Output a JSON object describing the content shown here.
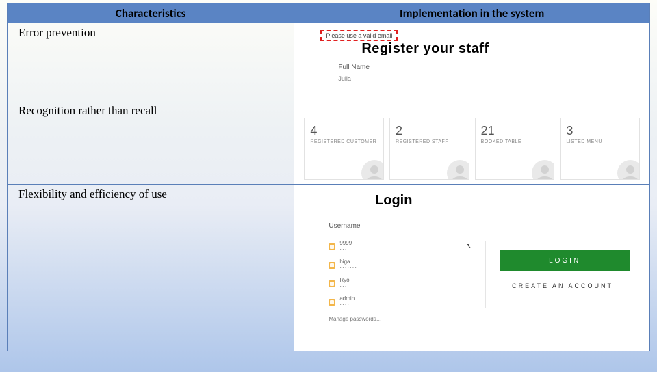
{
  "headers": {
    "left": "Characteristics",
    "right": "Implementation in the system"
  },
  "rows": {
    "r1": {
      "characteristic": "Error prevention"
    },
    "r2": {
      "characteristic": "Recognition rather than recall"
    },
    "r3": {
      "characteristic": "Flexibility and efficiency of use"
    }
  },
  "mock1": {
    "error_text": "Please use a valid email",
    "title": "Register your staff",
    "field_label": "Full Name",
    "field_value": "Julia"
  },
  "mock2": {
    "cards": [
      {
        "num": "4",
        "lbl": "REGISTERED CUSTOMER"
      },
      {
        "num": "2",
        "lbl": "REGISTERED STAFF"
      },
      {
        "num": "21",
        "lbl": "BOOKED TABLE"
      },
      {
        "num": "3",
        "lbl": "LISTED MENU"
      }
    ]
  },
  "mock3": {
    "title": "Login",
    "username_label": "Username",
    "creds": [
      {
        "u": "9999",
        "p": "···"
      },
      {
        "u": "higa",
        "p": "·······"
      },
      {
        "u": "Ryo",
        "p": "···"
      },
      {
        "u": "admin",
        "p": "····"
      }
    ],
    "manage_text": "Manage passwords…",
    "login_btn": "LOGIN",
    "create_account": "CREATE AN ACCOUNT"
  },
  "colors": {
    "header_bg": "#5a84c4",
    "border": "#5a7fb8",
    "error_dash": "#e02020",
    "login_btn_bg": "#1f8a2d",
    "key_icon": "#f3b64a"
  }
}
